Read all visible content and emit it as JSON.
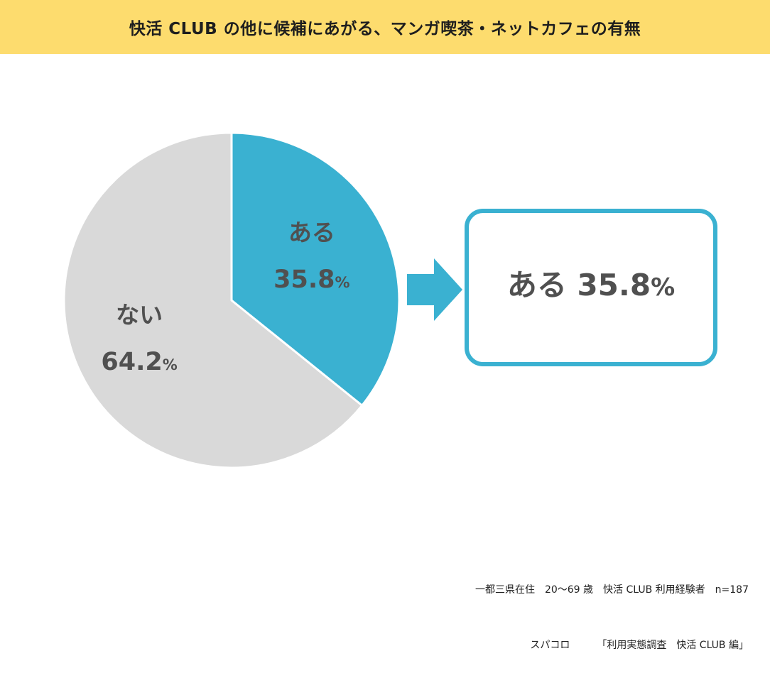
{
  "header": {
    "title": "快活 CLUB の他に候補にあがる、マンガ喫茶・ネットカフェの有無"
  },
  "chart_data": {
    "type": "pie",
    "title": "快活 CLUB の他に候補にあがる、マンガ喫茶・ネットカフェの有無",
    "slices": [
      {
        "label": "ある",
        "value": 35.8,
        "color": "#3ab1d1"
      },
      {
        "label": "ない",
        "value": 64.2,
        "color": "#d9d9d9"
      }
    ],
    "unit": "%"
  },
  "callout": {
    "label": "ある",
    "value": "35.8",
    "unit": "%"
  },
  "footer": {
    "sample": "一都三県在住　20～69 歳　快活 CLUB 利用経験者　n=187",
    "source_org": "スパコロ",
    "source_title": "「利用実態調査　快活 CLUB 編」"
  },
  "colors": {
    "header_bg": "#fddc6e",
    "accent": "#3ab1d1",
    "neutral": "#d9d9d9",
    "label_text": "#505050"
  }
}
